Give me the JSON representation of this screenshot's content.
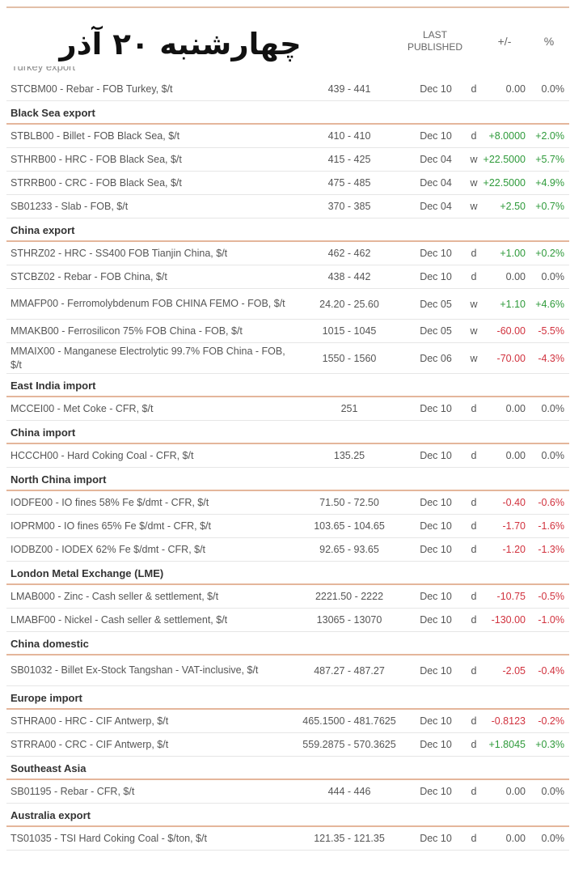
{
  "title": "چهارشنبه ۲۰ آذر",
  "columns": {
    "last_published": "LAST\nPUBLISHED",
    "change": "+/-",
    "percent": "%"
  },
  "cut_label": "Turkey export",
  "groups": [
    {
      "section": "",
      "rows": [
        {
          "name": "STCBM00 - Rebar - FOB Turkey, $/t",
          "range": "439 - 441",
          "date": "Dec 10",
          "freq": "d",
          "change": "0.00",
          "pct": "0.0%",
          "dir": "flat"
        }
      ]
    },
    {
      "section": "Black Sea export",
      "rows": [
        {
          "name": "STBLB00 - Billet - FOB Black Sea, $/t",
          "range": "410 - 410",
          "date": "Dec 10",
          "freq": "d",
          "change": "+8.0000",
          "pct": "+2.0%",
          "dir": "up"
        },
        {
          "name": "STHRB00 - HRC - FOB Black Sea, $/t",
          "range": "415 - 425",
          "date": "Dec 04",
          "freq": "w",
          "change": "+22.5000",
          "pct": "+5.7%",
          "dir": "up"
        },
        {
          "name": "STRRB00 - CRC - FOB Black Sea, $/t",
          "range": "475 - 485",
          "date": "Dec 04",
          "freq": "w",
          "change": "+22.5000",
          "pct": "+4.9%",
          "dir": "up"
        },
        {
          "name": "SB01233 - Slab - FOB, $/t",
          "range": "370 - 385",
          "date": "Dec 04",
          "freq": "w",
          "change": "+2.50",
          "pct": "+0.7%",
          "dir": "up"
        }
      ]
    },
    {
      "section": "China export",
      "rows": [
        {
          "name": "STHRZ02 - HRC - SS400 FOB Tianjin China, $/t",
          "range": "462 - 462",
          "date": "Dec 10",
          "freq": "d",
          "change": "+1.00",
          "pct": "+0.2%",
          "dir": "up"
        },
        {
          "name": "STCBZ02 - Rebar - FOB China, $/t",
          "range": "438 - 442",
          "date": "Dec 10",
          "freq": "d",
          "change": "0.00",
          "pct": "0.0%",
          "dir": "flat"
        },
        {
          "name": "MMAFP00 - Ferromolybdenum FOB CHINA FEMO - FOB, $/t",
          "range": "24.20 - 25.60",
          "date": "Dec 05",
          "freq": "w",
          "change": "+1.10",
          "pct": "+4.6%",
          "dir": "up"
        },
        {
          "name": "MMAKB00 - Ferrosilicon 75% FOB China - FOB, $/t",
          "range": "1015 - 1045",
          "date": "Dec 05",
          "freq": "w",
          "change": "-60.00",
          "pct": "-5.5%",
          "dir": "down"
        },
        {
          "name": "MMAIX00 - Manganese Electrolytic 99.7% FOB China - FOB, $/t",
          "range": "1550 - 1560",
          "date": "Dec 06",
          "freq": "w",
          "change": "-70.00",
          "pct": "-4.3%",
          "dir": "down"
        }
      ]
    },
    {
      "section": "East India import",
      "rows": [
        {
          "name": "MCCEI00 - Met Coke - CFR, $/t",
          "range": "251",
          "date": "Dec 10",
          "freq": "d",
          "change": "0.00",
          "pct": "0.0%",
          "dir": "flat"
        }
      ]
    },
    {
      "section": "China import",
      "rows": [
        {
          "name": "HCCCH00 - Hard Coking Coal - CFR, $/t",
          "range": "135.25",
          "date": "Dec 10",
          "freq": "d",
          "change": "0.00",
          "pct": "0.0%",
          "dir": "flat"
        }
      ]
    },
    {
      "section": "North China import",
      "rows": [
        {
          "name": "IODFE00 - IO fines 58% Fe $/dmt - CFR, $/t",
          "range": "71.50 - 72.50",
          "date": "Dec 10",
          "freq": "d",
          "change": "-0.40",
          "pct": "-0.6%",
          "dir": "down"
        },
        {
          "name": "IOPRM00 - IO fines 65% Fe $/dmt - CFR, $/t",
          "range": "103.65 - 104.65",
          "date": "Dec 10",
          "freq": "d",
          "change": "-1.70",
          "pct": "-1.6%",
          "dir": "down"
        },
        {
          "name": "IODBZ00 - IODEX 62% Fe $/dmt - CFR, $/t",
          "range": "92.65 - 93.65",
          "date": "Dec 10",
          "freq": "d",
          "change": "-1.20",
          "pct": "-1.3%",
          "dir": "down"
        }
      ]
    },
    {
      "section": "London Metal Exchange (LME)",
      "rows": [
        {
          "name": "LMAB000 - Zinc - Cash seller & settlement, $/t",
          "range": "2221.50 - 2222",
          "date": "Dec 10",
          "freq": "d",
          "change": "-10.75",
          "pct": "-0.5%",
          "dir": "down"
        },
        {
          "name": "LMABF00 - Nickel - Cash seller & settlement, $/t",
          "range": "13065 - 13070",
          "date": "Dec 10",
          "freq": "d",
          "change": "-130.00",
          "pct": "-1.0%",
          "dir": "down"
        }
      ]
    },
    {
      "section": "China domestic",
      "rows": [
        {
          "name": "SB01032 - Billet Ex-Stock Tangshan - VAT-inclusive, $/t",
          "range": "487.27 - 487.27",
          "date": "Dec 10",
          "freq": "d",
          "change": "-2.05",
          "pct": "-0.4%",
          "dir": "down"
        }
      ]
    },
    {
      "section": "Europe import",
      "rows": [
        {
          "name": "STHRA00 - HRC - CIF Antwerp, $/t",
          "range": "465.1500 - 481.7625",
          "date": "Dec 10",
          "freq": "d",
          "change": "-0.8123",
          "pct": "-0.2%",
          "dir": "down"
        },
        {
          "name": "STRRA00 - CRC - CIF Antwerp, $/t",
          "range": "559.2875 - 570.3625",
          "date": "Dec 10",
          "freq": "d",
          "change": "+1.8045",
          "pct": "+0.3%",
          "dir": "up"
        }
      ]
    },
    {
      "section": "Southeast Asia",
      "rows": [
        {
          "name": "SB01195 - Rebar - CFR, $/t",
          "range": "444 - 446",
          "date": "Dec 10",
          "freq": "d",
          "change": "0.00",
          "pct": "0.0%",
          "dir": "flat"
        }
      ]
    },
    {
      "section": "Australia export",
      "rows": [
        {
          "name": "TS01035 - TSI Hard Coking Coal - $/ton, $/t",
          "range": "121.35 - 121.35",
          "date": "Dec 10",
          "freq": "d",
          "change": "0.00",
          "pct": "0.0%",
          "dir": "flat"
        }
      ]
    }
  ]
}
